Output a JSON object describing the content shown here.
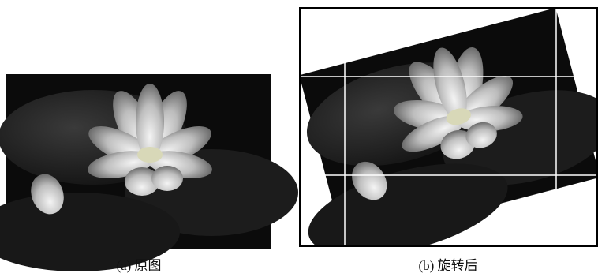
{
  "figures": [
    {
      "caption": "(a) 原图"
    },
    {
      "caption": "(b) 旋转后"
    }
  ]
}
